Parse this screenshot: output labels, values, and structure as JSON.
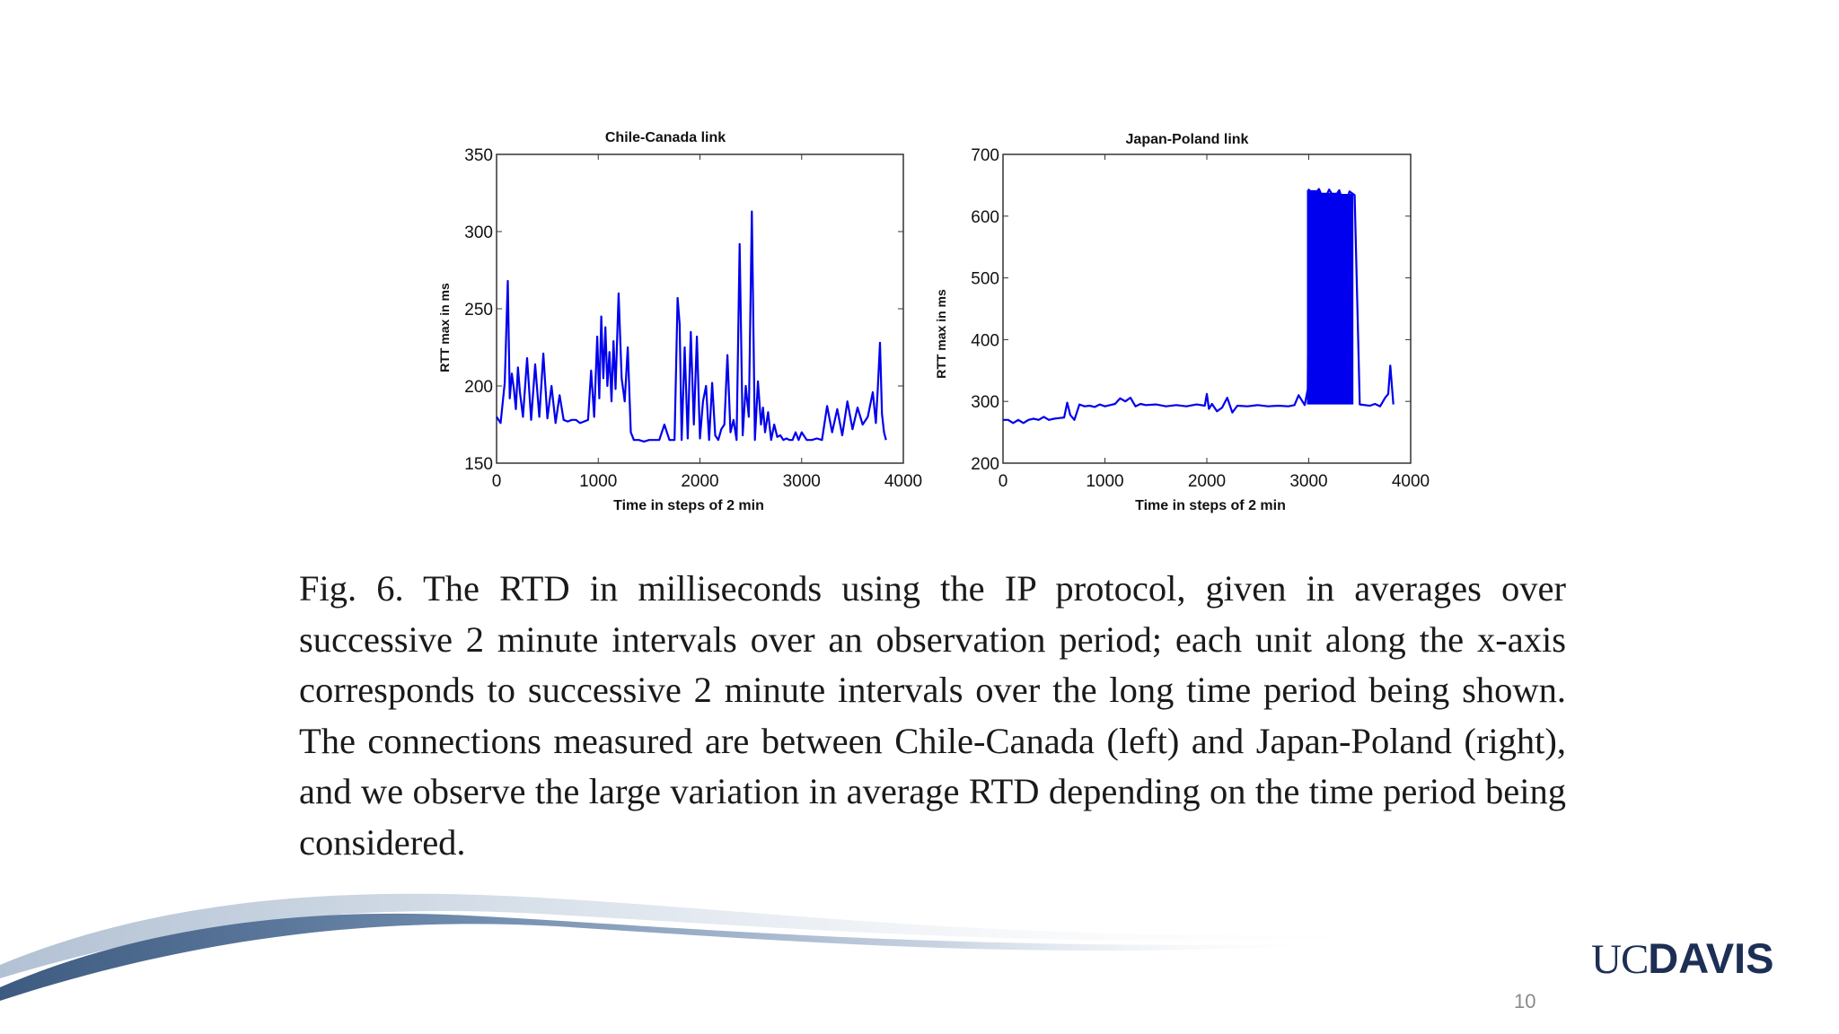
{
  "chart_data": [
    {
      "type": "line",
      "title": "Chile-Canada link",
      "xlabel": "Time in steps of 2 min",
      "ylabel": "RTT max in ms",
      "xlim": [
        0,
        4000
      ],
      "ylim": [
        150,
        350
      ],
      "xticks": [
        0,
        1000,
        2000,
        3000,
        4000
      ],
      "yticks": [
        150,
        200,
        250,
        300,
        350
      ],
      "color": "#0000ee",
      "series": [
        {
          "x": [
            0,
            40,
            80,
            110,
            130,
            150,
            170,
            190,
            210,
            230,
            260,
            300,
            340,
            380,
            420,
            460,
            500,
            540,
            580,
            620,
            660,
            700,
            740,
            780,
            820,
            860,
            900,
            930,
            960,
            990,
            1010,
            1030,
            1050,
            1070,
            1090,
            1110,
            1130,
            1150,
            1170,
            1200,
            1230,
            1260,
            1290,
            1320,
            1350,
            1370,
            1400,
            1450,
            1500,
            1550,
            1600,
            1650,
            1700,
            1750,
            1780,
            1800,
            1820,
            1850,
            1880,
            1910,
            1940,
            1970,
            2000,
            2030,
            2060,
            2090,
            2120,
            2150,
            2180,
            2210,
            2240,
            2270,
            2300,
            2330,
            2360,
            2390,
            2420,
            2450,
            2480,
            2510,
            2540,
            2570,
            2600,
            2620,
            2640,
            2670,
            2700,
            2730,
            2760,
            2790,
            2820,
            2850,
            2880,
            2910,
            2940,
            2970,
            3000,
            3050,
            3100,
            3150,
            3200,
            3250,
            3300,
            3350,
            3400,
            3450,
            3500,
            3550,
            3600,
            3650,
            3700,
            3730,
            3750,
            3770,
            3790,
            3810,
            3830
          ],
          "y": [
            180,
            176,
            202,
            268,
            192,
            208,
            198,
            185,
            212,
            196,
            180,
            218,
            178,
            214,
            180,
            221,
            179,
            200,
            176,
            194,
            178,
            177,
            178,
            178,
            176,
            177,
            178,
            210,
            180,
            232,
            192,
            245,
            205,
            238,
            200,
            222,
            190,
            229,
            198,
            260,
            205,
            190,
            225,
            170,
            165,
            165,
            165,
            164,
            165,
            165,
            165,
            175,
            165,
            165,
            257,
            240,
            165,
            225,
            166,
            235,
            175,
            232,
            166,
            190,
            200,
            165,
            202,
            168,
            165,
            172,
            175,
            220,
            170,
            178,
            165,
            292,
            168,
            200,
            180,
            313,
            165,
            203,
            175,
            186,
            170,
            183,
            165,
            175,
            167,
            168,
            165,
            166,
            165,
            165,
            170,
            165,
            170,
            165,
            165,
            166,
            165,
            187,
            170,
            185,
            168,
            190,
            172,
            186,
            175,
            180,
            196,
            176,
            200,
            228,
            182,
            170,
            165
          ]
        }
      ]
    },
    {
      "type": "line",
      "title": "Japan-Poland link",
      "xlabel": "Time in steps of 2 min",
      "ylabel": "RTT max in ms",
      "xlim": [
        0,
        4000
      ],
      "ylim": [
        200,
        700
      ],
      "xticks": [
        0,
        1000,
        2000,
        3000,
        4000
      ],
      "yticks": [
        200,
        300,
        400,
        500,
        600,
        700
      ],
      "color": "#0000ee",
      "series": [
        {
          "x": [
            0,
            50,
            100,
            150,
            200,
            250,
            300,
            350,
            400,
            450,
            500,
            550,
            600,
            630,
            660,
            700,
            750,
            800,
            850,
            900,
            950,
            1000,
            1050,
            1100,
            1150,
            1200,
            1250,
            1300,
            1350,
            1400,
            1500,
            1600,
            1700,
            1800,
            1900,
            1980,
            2000,
            2020,
            2050,
            2100,
            2150,
            2200,
            2250,
            2300,
            2400,
            2500,
            2600,
            2700,
            2800,
            2860,
            2900,
            2960,
            2990,
            3000,
            3050,
            3100,
            3150,
            3200,
            3250,
            3300,
            3350,
            3400,
            3450,
            3500,
            3600,
            3650,
            3700,
            3750,
            3780,
            3800,
            3830
          ],
          "y": [
            270,
            270,
            265,
            270,
            265,
            270,
            272,
            270,
            275,
            270,
            272,
            273,
            274,
            298,
            278,
            270,
            295,
            292,
            293,
            291,
            295,
            292,
            294,
            296,
            305,
            300,
            306,
            292,
            296,
            294,
            295,
            292,
            294,
            292,
            295,
            293,
            312,
            288,
            296,
            284,
            290,
            306,
            282,
            293,
            292,
            294,
            292,
            293,
            292,
            294,
            310,
            294,
            320,
            643,
            633,
            644,
            625,
            643,
            630,
            642,
            615,
            640,
            634,
            295,
            293,
            296,
            292,
            306,
            312,
            358,
            295
          ]
        }
      ]
    }
  ],
  "caption": "Fig. 6. The RTD in milliseconds using the IP protocol, given in averages over successive 2 minute intervals over an observation period; each unit along the x-axis corresponds to successive 2 minute intervals over the long time period being shown. The connections measured are between Chile-Canada (left) and Japan-Poland (right), and we observe the large variation in average RTD depending on the time period being considered.",
  "logo": {
    "uc": "UC",
    "davis": "DAVIS"
  },
  "page_number": "10"
}
